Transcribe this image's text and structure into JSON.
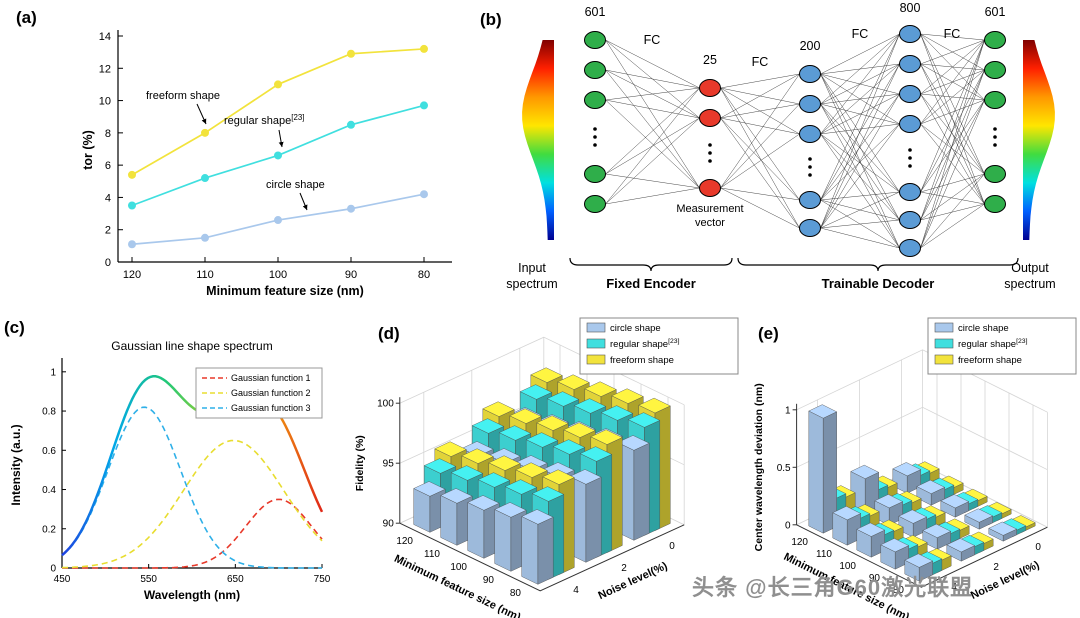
{
  "figure": {
    "background": "#ffffff",
    "watermark": "头条 @长三角G60激光联盟"
  },
  "colors": {
    "freeform": "#f2e33c",
    "regular": "#40dfdf",
    "circle": "#a9c8ec",
    "node_green": "#2fae4a",
    "node_red": "#e8392a",
    "node_blue": "#5b9bd5"
  },
  "chart_data": [
    {
      "id": "a",
      "type": "line",
      "panel_label": "(a)",
      "xlabel": "Minimum feature size (nm)",
      "ylabel": "tor (%)",
      "categories": [
        120,
        110,
        100,
        90,
        80
      ],
      "ylim": [
        0,
        14
      ],
      "y_ticks": [
        0,
        2,
        4,
        6,
        8,
        10,
        12,
        14
      ],
      "series": [
        {
          "name": "freeform shape",
          "color_key": "freeform",
          "values": [
            5.4,
            8.0,
            11.0,
            12.9,
            13.2
          ]
        },
        {
          "name": "regular shape[23]",
          "color_key": "regular",
          "values": [
            3.5,
            5.2,
            6.6,
            8.5,
            9.7
          ]
        },
        {
          "name": "circle shape",
          "color_key": "circle",
          "values": [
            1.1,
            1.5,
            2.6,
            3.3,
            4.2
          ]
        }
      ],
      "annotations": [
        {
          "text": "freeform shape"
        },
        {
          "text": "regular shape[23]"
        },
        {
          "text": "circle shape"
        }
      ]
    },
    {
      "id": "c",
      "type": "line",
      "panel_label": "(c)",
      "title": "Gaussian line shape spectrum",
      "xlabel": "Wavelength (nm)",
      "ylabel": "Intensity (a.u.)",
      "xlim": [
        450,
        750
      ],
      "ylim": [
        0,
        1.05
      ],
      "x_ticks": [
        450,
        550,
        650,
        750
      ],
      "y_ticks": [
        0,
        0.2,
        0.4,
        0.6,
        0.8,
        1
      ],
      "gaussians": [
        {
          "name": "Gaussian function 1",
          "color": "#e8392a",
          "amp": 0.35,
          "center": 700,
          "sigma": 38
        },
        {
          "name": "Gaussian function 2",
          "color": "#e8dd30",
          "amp": 0.65,
          "center": 648,
          "sigma": 58
        },
        {
          "name": "Gaussian function 3",
          "color": "#2fb0e8",
          "amp": 0.82,
          "center": 545,
          "sigma": 42
        }
      ],
      "sum_gradient": [
        "#2040e0",
        "#00a8e8",
        "#20c878",
        "#b0d020",
        "#f0a010",
        "#e02818"
      ]
    },
    {
      "id": "d",
      "type": "bar3d",
      "panel_label": "(d)",
      "zlabel": "Fidelity (%)",
      "xlabel": "Minimum feature size (nm)",
      "ylabel": "Noise level(%)",
      "feature_sizes": [
        120,
        110,
        100,
        90,
        80
      ],
      "noise_levels": [
        4,
        2,
        0
      ],
      "zlim": [
        90,
        100
      ],
      "z_ticks": [
        90,
        95,
        100
      ],
      "series": [
        {
          "name": "circle shape",
          "color_key": "circle",
          "values": [
            [
              93.0,
              93.5,
              94.0,
              94.5,
              95.0
            ],
            [
              94.5,
              95.0,
              95.5,
              96.0,
              96.5
            ],
            [
              95.5,
              96.0,
              96.5,
              97.0,
              97.5
            ]
          ]
        },
        {
          "name": "regular shape[23]",
          "color_key": "regular",
          "values": [
            [
              94.5,
              95.0,
              95.5,
              96.0,
              96.5
            ],
            [
              96.0,
              96.5,
              97.0,
              97.5,
              98.0
            ],
            [
              97.0,
              97.5,
              98.0,
              98.5,
              99.0
            ]
          ]
        },
        {
          "name": "freeform shape",
          "color_key": "freeform",
          "values": [
            [
              95.5,
              96.0,
              96.5,
              97.0,
              97.5
            ],
            [
              97.0,
              97.5,
              98.0,
              98.5,
              99.0
            ],
            [
              98.0,
              98.5,
              99.0,
              99.5,
              99.8
            ]
          ]
        }
      ]
    },
    {
      "id": "e",
      "type": "bar3d",
      "panel_label": "(e)",
      "zlabel": "Center wavelength deviation (nm)",
      "xlabel": "Minimum feature size (nm)",
      "ylabel": "Noise level(%)",
      "feature_sizes": [
        120,
        110,
        100,
        90,
        80
      ],
      "noise_levels": [
        4,
        2,
        0
      ],
      "zlim": [
        0,
        1
      ],
      "z_ticks": [
        0,
        0.5,
        1
      ],
      "series": [
        {
          "name": "circle shape",
          "color_key": "circle",
          "values": [
            [
              1.0,
              0.22,
              0.18,
              0.15,
              0.12
            ],
            [
              0.3,
              0.15,
              0.12,
              0.1,
              0.08
            ],
            [
              0.15,
              0.1,
              0.08,
              0.06,
              0.05
            ]
          ]
        },
        {
          "name": "regular shape[23]",
          "color_key": "regular",
          "values": [
            [
              0.25,
              0.18,
              0.14,
              0.12,
              0.1
            ],
            [
              0.15,
              0.12,
              0.1,
              0.08,
              0.07
            ],
            [
              0.1,
              0.08,
              0.06,
              0.05,
              0.04
            ]
          ]
        },
        {
          "name": "freeform shape",
          "color_key": "freeform",
          "values": [
            [
              0.22,
              0.16,
              0.13,
              0.1,
              0.09
            ],
            [
              0.13,
              0.1,
              0.08,
              0.07,
              0.06
            ],
            [
              0.08,
              0.06,
              0.05,
              0.04,
              0.03
            ]
          ]
        }
      ]
    }
  ],
  "diagram": {
    "panel_label": "(b)",
    "layer_labels": [
      "601",
      "25",
      "200",
      "800",
      "601"
    ],
    "layer_colors": [
      "green",
      "red",
      "blue",
      "blue",
      "green"
    ],
    "fc_label": "FC",
    "measurement_label": "Measurement vector",
    "encoder_label": "Fixed Encoder",
    "decoder_label": "Trainable Decoder",
    "input_label": "Input spectrum",
    "output_label": "Output spectrum",
    "spectrum_gradient": [
      "#800000",
      "#ff2000",
      "#ff9800",
      "#ffe600",
      "#40dc40",
      "#00e0e0",
      "#0060ff",
      "#000090"
    ]
  }
}
